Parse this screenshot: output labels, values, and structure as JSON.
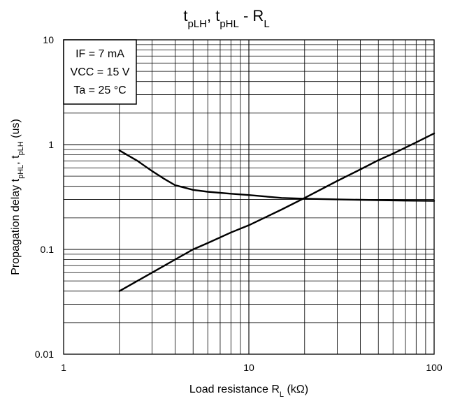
{
  "chart_data": {
    "type": "line",
    "title": {
      "parts": [
        {
          "text": "t",
          "sub": "pLH"
        },
        {
          "text": ", t",
          "sub": "pHL"
        },
        {
          "text": " - R",
          "sub": "L"
        }
      ]
    },
    "xlabel": {
      "parts": [
        {
          "text": "Load resistance   R",
          "sub": "L"
        },
        {
          "text": " (kΩ)",
          "sub": ""
        }
      ]
    },
    "ylabel": {
      "parts": [
        {
          "text": "Propagation delay   t",
          "sub": "pHL"
        },
        {
          "text": ", t",
          "sub": "pLH"
        },
        {
          "text": " (us)",
          "sub": ""
        }
      ]
    },
    "x_scale": "log",
    "y_scale": "log",
    "xlim": [
      1,
      100
    ],
    "ylim": [
      0.01,
      10
    ],
    "x_ticks": [
      {
        "value": 1,
        "label": "1"
      },
      {
        "value": 10,
        "label": "10"
      },
      {
        "value": 100,
        "label": "100"
      }
    ],
    "y_ticks": [
      {
        "value": 0.01,
        "label": "0.01"
      },
      {
        "value": 0.1,
        "label": "0.1"
      },
      {
        "value": 1,
        "label": "1"
      },
      {
        "value": 10,
        "label": "10"
      }
    ],
    "grid": true,
    "annotation": {
      "lines": [
        {
          "text": "IF = 7 mA"
        },
        {
          "text": "VCC = 15 V"
        },
        {
          "text": "Ta = 25 °C"
        }
      ],
      "placement": "top-left"
    },
    "line_color": "#000000",
    "series": [
      {
        "x": [
          2,
          2.5,
          3,
          3.5,
          4,
          5,
          6,
          8,
          10,
          15,
          20,
          30,
          50,
          70,
          100
        ],
        "y": [
          0.88,
          0.7,
          0.56,
          0.47,
          0.41,
          0.37,
          0.355,
          0.34,
          0.33,
          0.31,
          0.305,
          0.3,
          0.295,
          0.292,
          0.29
        ]
      },
      {
        "x": [
          2,
          3,
          4,
          5,
          6,
          8,
          10,
          15,
          20,
          30,
          40,
          50,
          60,
          80,
          100
        ],
        "y": [
          0.04,
          0.06,
          0.08,
          0.1,
          0.115,
          0.145,
          0.17,
          0.24,
          0.31,
          0.45,
          0.58,
          0.71,
          0.82,
          1.05,
          1.28
        ]
      }
    ]
  }
}
